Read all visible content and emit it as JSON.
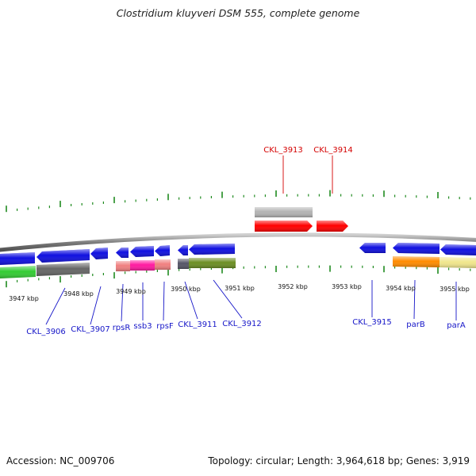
{
  "title": "Clostridium kluyveri DSM 555, complete genome",
  "footer": {
    "accession": "Accession: NC_009706",
    "topology": "Topology: circular; Length: 3,964,618 bp; Genes: 3,919"
  },
  "colors": {
    "backbone": "#8a8a8a",
    "tick": "#1f8a1f",
    "gene_label": "#1515c8",
    "highlight_label": "#d40000"
  },
  "scale_labels": [
    "3947 kbp",
    "3948 kbp",
    "3949 kbp",
    "3950 kbp",
    "3951 kbp",
    "3952 kbp",
    "3953 kbp",
    "3954 kbp",
    "3955 kbp"
  ],
  "gene_labels": [
    "CKL_3906",
    "CKL_3907",
    "rpsR",
    "ssb3",
    "rpsF",
    "CKL_3911",
    "CKL_3912",
    "CKL_3915",
    "parB",
    "parA"
  ],
  "highlight_labels": [
    "CKL_3913",
    "CKL_3914"
  ],
  "features": {
    "cds_forward": [
      {
        "name": "CKL_3913",
        "color": "#ff0000"
      },
      {
        "name": "CKL_3914",
        "color": "#ff0000"
      }
    ],
    "cds_reverse": [
      {
        "name": "CKL_3906",
        "color": "#1010e0"
      },
      {
        "name": "CKL_3907",
        "color": "#1010e0"
      },
      {
        "name": "rpsR",
        "color": "#1010e0"
      },
      {
        "name": "ssb3",
        "color": "#1010e0"
      },
      {
        "name": "rpsF",
        "color": "#1010e0"
      },
      {
        "name": "CKL_3911",
        "color": "#1010e0"
      },
      {
        "name": "CKL_3912",
        "color": "#1010e0"
      },
      {
        "name": "CKL_3915",
        "color": "#1010e0"
      },
      {
        "name": "parB",
        "color": "#1010e0"
      },
      {
        "name": "parA",
        "color": "#1010e0"
      }
    ],
    "rna_blocks": [
      "#33cc33",
      "#666666",
      "#f08080",
      "#ff1aa0",
      "#f08080",
      "#555566",
      "#6b8e23",
      "#ff8c00",
      "#f0e68c",
      "#b4b4b4"
    ]
  }
}
